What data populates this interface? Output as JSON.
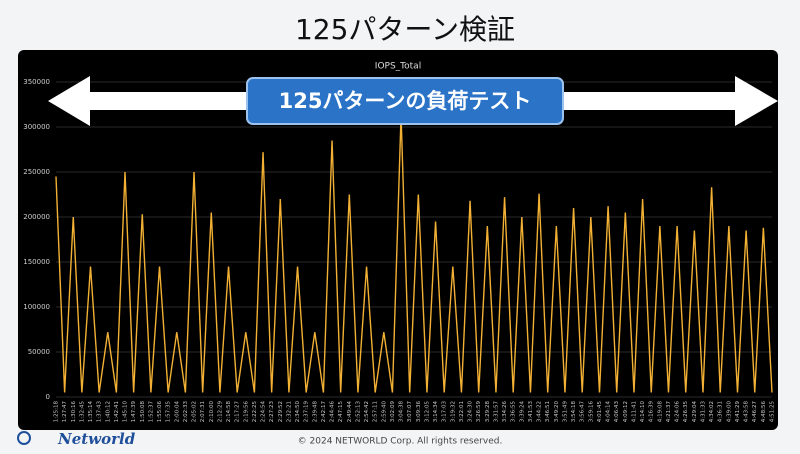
{
  "slide": {
    "title": "125パターン検証",
    "banner": "125パターンの負荷テスト",
    "logo": "Networld",
    "footer": "© 2024 NETWORLD  Corp.  All rights reserved."
  },
  "chart_data": {
    "type": "line",
    "title": "IOPS_Total",
    "categories": [
      "1:25:18",
      "1:27:47",
      "1:30:16",
      "1:32:45",
      "1:35:14",
      "1:37:43",
      "1:40:12",
      "1:42:41",
      "1:45:10",
      "1:47:39",
      "1:50:08",
      "1:52:37",
      "1:55:06",
      "1:57:35",
      "2:00:04",
      "2:02:33",
      "2:05:02",
      "2:07:31",
      "2:10:00",
      "2:12:29",
      "2:14:58",
      "2:17:27",
      "2:19:56",
      "2:22:25",
      "2:24:54",
      "2:27:23",
      "2:29:52",
      "2:32:21",
      "2:34:50",
      "2:37:19",
      "2:39:48",
      "2:42:17",
      "2:44:46",
      "2:47:15",
      "2:49:44",
      "2:52:13",
      "2:54:42",
      "2:57:11",
      "2:59:40",
      "3:02:09",
      "3:04:38",
      "3:07:07",
      "3:09:36",
      "3:12:05",
      "3:14:34",
      "3:17:03",
      "3:19:32",
      "3:22:01",
      "3:24:30",
      "3:26:59",
      "3:29:28",
      "3:31:57",
      "3:34:26",
      "3:36:55",
      "3:39:24",
      "3:41:53",
      "3:44:22",
      "3:46:51",
      "3:49:20",
      "3:51:49",
      "3:54:18",
      "3:56:47",
      "3:59:16",
      "4:01:45",
      "4:04:14",
      "4:06:43",
      "4:09:12",
      "4:11:41",
      "4:14:10",
      "4:16:39",
      "4:19:08",
      "4:21:37",
      "4:24:06",
      "4:26:35",
      "4:29:04",
      "4:31:33",
      "4:34:02",
      "4:36:31",
      "4:39:00",
      "4:41:29",
      "4:43:58",
      "4:46:27",
      "4:48:56",
      "4:51:25"
    ],
    "series": [
      {
        "name": "IOPS_Total",
        "color": "#f2b134",
        "values": [
          245000,
          5000,
          200000,
          5000,
          145000,
          5000,
          72000,
          5000,
          250000,
          5000,
          203000,
          5000,
          145000,
          5000,
          72000,
          5000,
          250000,
          5000,
          205000,
          5000,
          145000,
          5000,
          72000,
          5000,
          272000,
          5000,
          220000,
          5000,
          145000,
          5000,
          72000,
          5000,
          285000,
          5000,
          225000,
          5000,
          145000,
          5000,
          72000,
          5000,
          313000,
          5000,
          225000,
          5000,
          195000,
          5000,
          145000,
          5000,
          218000,
          5000,
          190000,
          5000,
          222000,
          5000,
          200000,
          5000,
          226000,
          5000,
          190000,
          5000,
          210000,
          5000,
          200000,
          5000,
          212000,
          5000,
          205000,
          5000,
          220000,
          5000,
          190000,
          5000,
          190000,
          5000,
          185000,
          5000,
          233000,
          5000,
          190000,
          5000,
          185000,
          5000,
          188000,
          5000
        ]
      }
    ],
    "ylim": [
      0,
      350000
    ],
    "yticks": [
      0,
      50000,
      100000,
      150000,
      200000,
      250000,
      300000,
      350000
    ],
    "grid": true
  }
}
